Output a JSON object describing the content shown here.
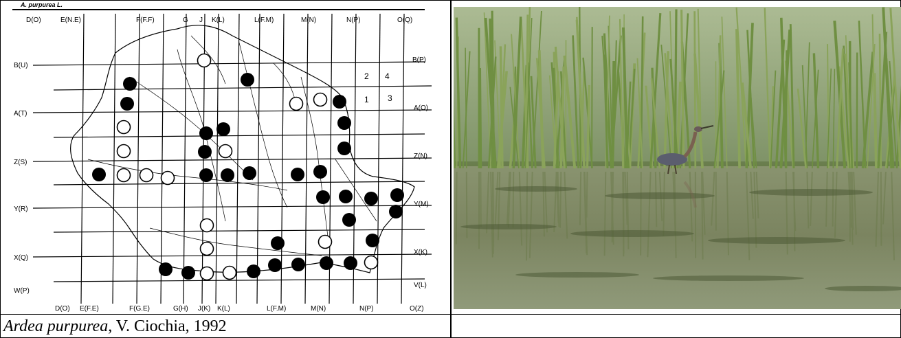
{
  "map": {
    "title": "A. purpurea L.",
    "top_labels": [
      "D(O)",
      "E(N.E)",
      "F(F.F)",
      "G",
      "J",
      "K(L)",
      "L(F.M)",
      "M(N)",
      "N(P)",
      "O(Q)"
    ],
    "bottom_labels": [
      "D(O)",
      "E(F.E)",
      "F(G.E)",
      "G(H)",
      "J(K)",
      "K(L)",
      "L(F.M)",
      "M(N)",
      "N(P)",
      "O(Z)"
    ],
    "left_labels": [
      "B(U)",
      "A(T)",
      "Z(S)",
      "Y(R)",
      "X(Q)",
      "W(P)"
    ],
    "right_labels": [
      "B(P)",
      "A(O)",
      "Z(N)",
      "Y(M)",
      "X(K)",
      "V(L)"
    ],
    "legend_numbers": [
      "2",
      "4",
      "1",
      "3"
    ],
    "records_filled_count": 30,
    "records_open_count": 16
  },
  "photo": {
    "subject": "purple heron wading among reeds"
  },
  "caption": {
    "species": "Ardea purpurea",
    "rest": ", V. Ciochia, 1992"
  },
  "colors": {
    "water": "#7f8a6a",
    "reeds": "#6f8a4a",
    "sky": "#c9d3c2",
    "heron": "#5a5a6a"
  }
}
